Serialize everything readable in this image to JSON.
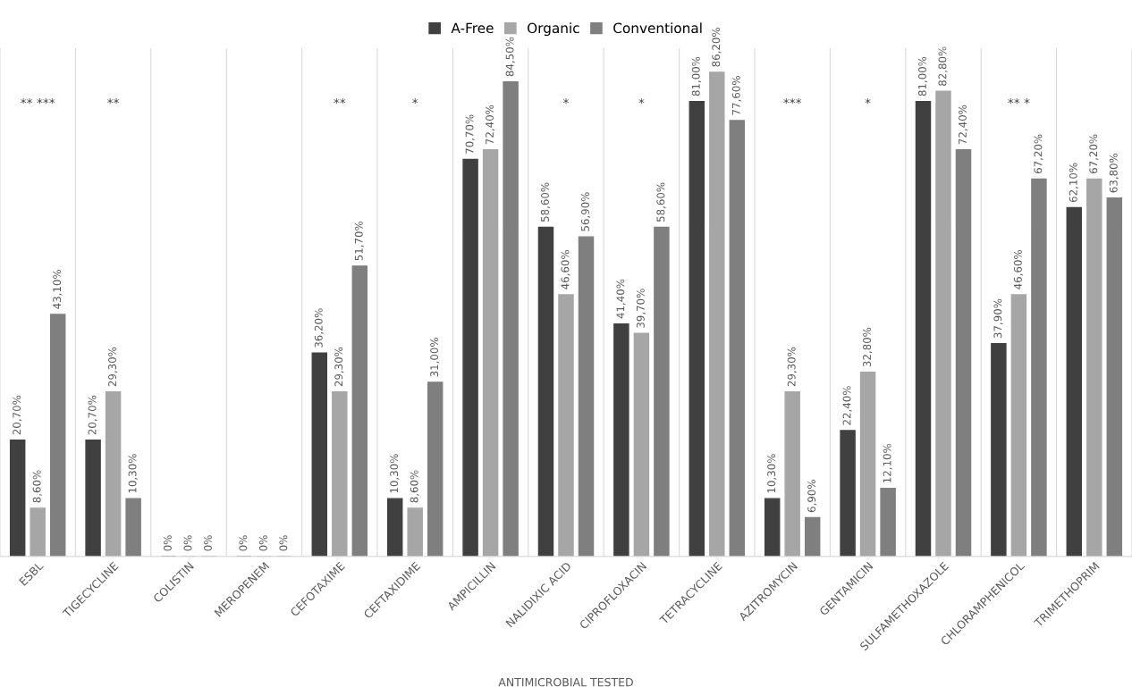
{
  "chart_data": {
    "type": "bar",
    "xlabel": "ANTIMICROBIAL TESTED",
    "categories": [
      "ESBL",
      "TIGECYCLINE",
      "COLISTIN",
      "MEROPENEM",
      "CEFOTAXIME",
      "CEFTAXIDIME",
      "AMPICILLIN",
      "NALIDIXIC ACID",
      "CIPROFLOXACIN",
      "TETRACYCLINE",
      "AZITROMYCIN",
      "GENTAMICIN",
      "SULFAMETHOXAZOLE",
      "CHLORAMPHENICOL",
      "TRIMETHOPRIM"
    ],
    "series": [
      {
        "name": "A-Free",
        "color": "#404040",
        "values": [
          20.7,
          20.7,
          0,
          0,
          36.2,
          10.3,
          70.7,
          58.6,
          41.4,
          81.0,
          10.3,
          22.4,
          81.0,
          37.9,
          62.1
        ],
        "value_labels": [
          "20,70%",
          "20,70%",
          "0%",
          "0%",
          "36,20%",
          "10,30%",
          "70,70%",
          "58,60%",
          "41,40%",
          "81,00%",
          "10,30%",
          "22,40%",
          "81,00%",
          "37,90%",
          "62,10%"
        ]
      },
      {
        "name": "Organic",
        "color": "#a6a6a6",
        "values": [
          8.6,
          29.3,
          0,
          0,
          29.3,
          8.6,
          72.4,
          46.6,
          39.7,
          86.2,
          29.3,
          32.8,
          82.8,
          46.6,
          67.2
        ],
        "value_labels": [
          "8,60%",
          "29,30%",
          "0%",
          "0%",
          "29,30%",
          "8,60%",
          "72,40%",
          "46,60%",
          "39,70%",
          "86,20%",
          "29,30%",
          "32,80%",
          "82,80%",
          "46,60%",
          "67,20%"
        ]
      },
      {
        "name": "Conventional",
        "color": "#7f7f7f",
        "values": [
          43.1,
          10.3,
          0,
          0,
          51.7,
          31.0,
          84.5,
          56.9,
          58.6,
          77.6,
          6.9,
          12.1,
          72.4,
          67.2,
          63.8
        ],
        "value_labels": [
          "43,10%",
          "10,30%",
          "0%",
          "0%",
          "51,70%",
          "31,00%",
          "84,50%",
          "56,90%",
          "58,60%",
          "77,60%",
          "6,90%",
          "12,10%",
          "72,40%",
          "67,20%",
          "63,80%"
        ]
      }
    ],
    "annotations": [
      "** ***",
      "**",
      null,
      null,
      "**",
      "*",
      null,
      "*",
      "*",
      null,
      "***",
      "*",
      null,
      "** *",
      null
    ],
    "grid": "x",
    "legend": "top"
  }
}
